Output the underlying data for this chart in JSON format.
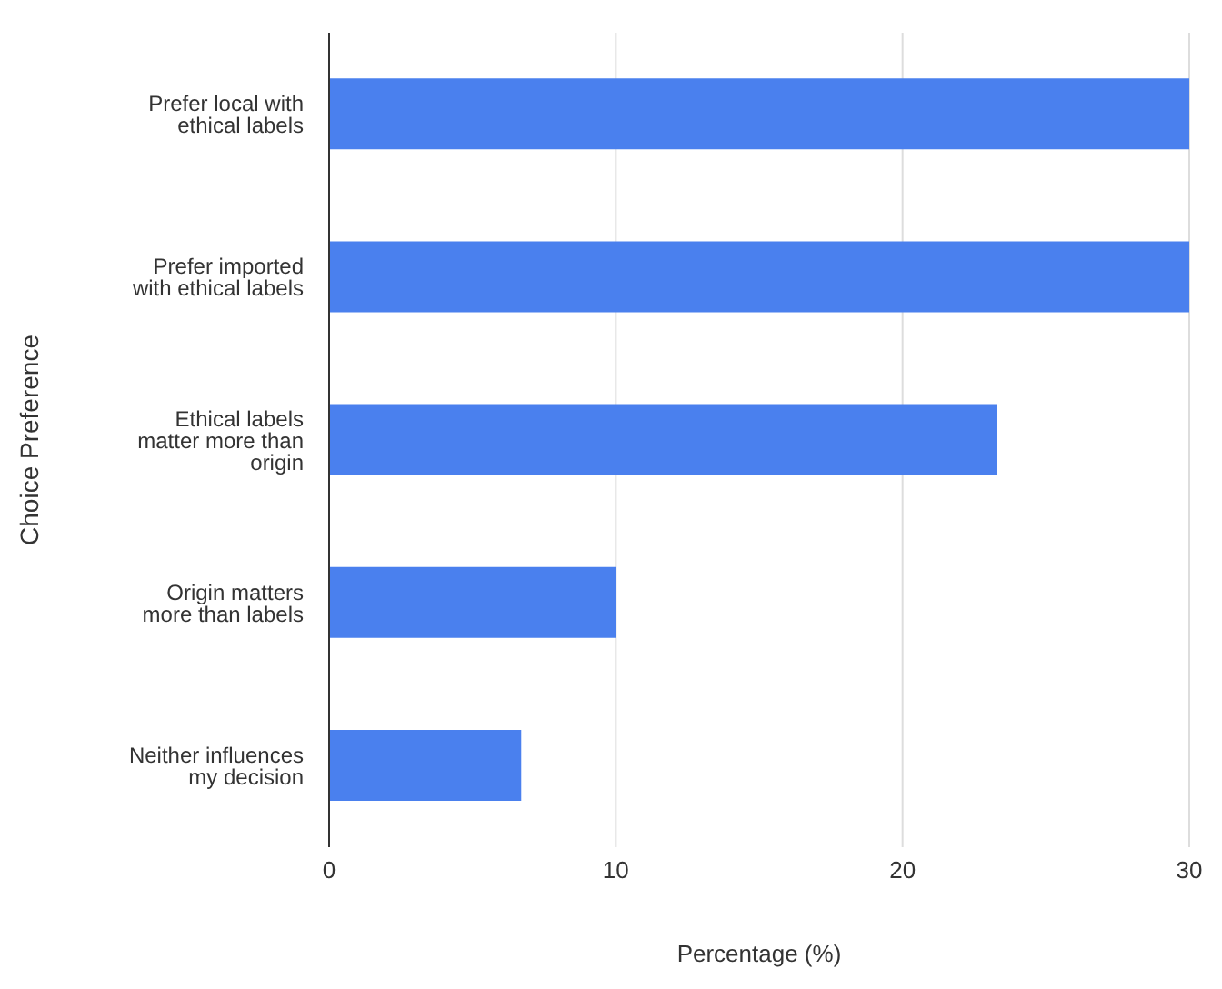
{
  "chart_data": {
    "type": "bar",
    "orientation": "horizontal",
    "xlabel": "Percentage (%)",
    "ylabel": "Choice Preference",
    "categories": [
      "Prefer local with ethical labels",
      "Prefer imported with ethical labels",
      "Ethical labels matter more than origin",
      "Origin matters more than labels",
      "Neither influences my decision"
    ],
    "values": [
      30,
      30,
      23.3,
      10,
      6.7
    ],
    "color": "#4a80ee",
    "xlim": [
      0,
      30
    ],
    "xticks": [
      0,
      10,
      20,
      30
    ],
    "grid": "x"
  }
}
